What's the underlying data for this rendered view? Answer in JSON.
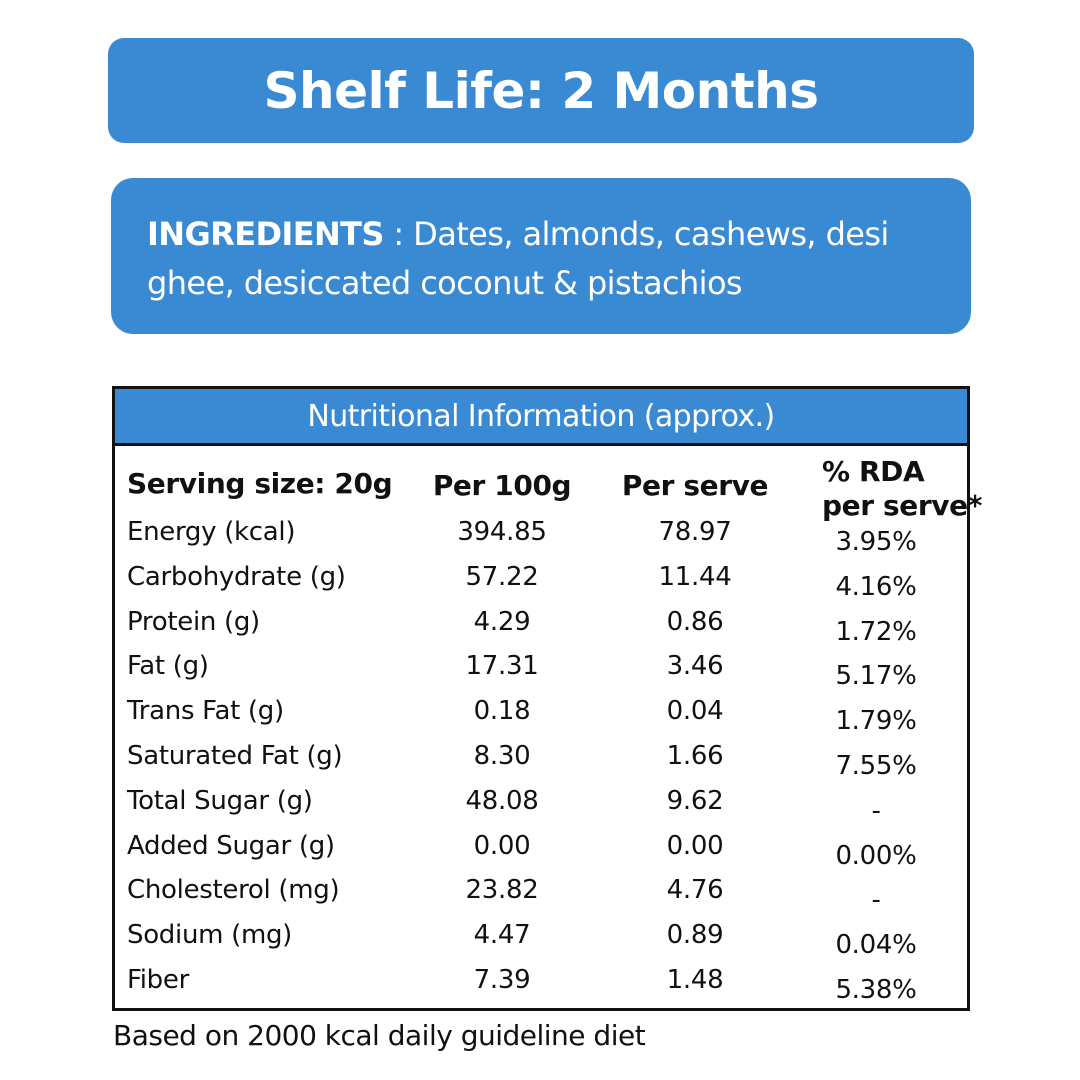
{
  "shelf_life": {
    "text": "Shelf Life: 2 Months"
  },
  "ingredients": {
    "label": "INGREDIENTS",
    "separator": " : ",
    "text": "Dates, almonds, cashews, desi ghee, desiccated coconut & pistachios"
  },
  "nutrition": {
    "title": "Nutritional Information (approx.)",
    "headers": {
      "serving": "Serving size: 20g",
      "per100": "Per 100g",
      "perserve": "Per serve",
      "rda_line1": "% RDA",
      "rda_line2": "per serve*"
    },
    "rows": [
      {
        "name": "Energy (kcal)",
        "per100": "394.85",
        "perserve": "78.97",
        "rda": "3.95%"
      },
      {
        "name": "Carbohydrate (g)",
        "per100": "57.22",
        "perserve": "11.44",
        "rda": "4.16%"
      },
      {
        "name": "Protein (g)",
        "per100": "4.29",
        "perserve": "0.86",
        "rda": "1.72%"
      },
      {
        "name": "Fat (g)",
        "per100": "17.31",
        "perserve": "3.46",
        "rda": "5.17%"
      },
      {
        "name": "Trans Fat (g)",
        "per100": "0.18",
        "perserve": "0.04",
        "rda": "1.79%"
      },
      {
        "name": "Saturated Fat (g)",
        "per100": "8.30",
        "perserve": "1.66",
        "rda": "7.55%"
      },
      {
        "name": "Total Sugar (g)",
        "per100": "48.08",
        "perserve": "9.62",
        "rda": "-"
      },
      {
        "name": "Added Sugar (g)",
        "per100": "0.00",
        "perserve": "0.00",
        "rda": "0.00%"
      },
      {
        "name": "Cholesterol (mg)",
        "per100": "23.82",
        "perserve": "4.76",
        "rda": "-"
      },
      {
        "name": "Sodium (mg)",
        "per100": "4.47",
        "perserve": "0.89",
        "rda": "0.04%"
      },
      {
        "name": "Fiber",
        "per100": "7.39",
        "perserve": "1.48",
        "rda": "5.38%"
      }
    ]
  },
  "footnote": {
    "text": "Based on 2000 kcal daily guideline diet"
  },
  "colors": {
    "accent_blue": "#3a8ad3",
    "text": "#111111",
    "background": "#ffffff"
  }
}
